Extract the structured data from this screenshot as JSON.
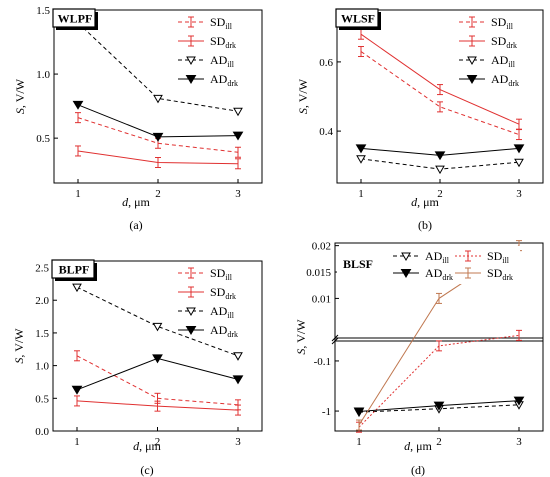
{
  "chart_data": [
    {
      "type": "line",
      "panel": "(a)",
      "title": "WLPF",
      "xlabel": "d",
      "xunit": ", μm",
      "ylabel": "S",
      "yunit": ", V/W",
      "x": [
        1,
        2,
        3
      ],
      "xticks": [
        "1",
        "2",
        "3"
      ],
      "ylim": [
        0.15,
        1.5
      ],
      "yticks": [
        0.5,
        1.0,
        1.5
      ],
      "ytick_labels": [
        "0.5",
        "1.0",
        "1.5"
      ],
      "legend_position": "top-right",
      "series": [
        {
          "name": "SD",
          "sub": "ill",
          "values": [
            0.66,
            0.46,
            0.39
          ],
          "color": "#e03030",
          "dash": "dashed",
          "marker": "bar"
        },
        {
          "name": "SD",
          "sub": "drk",
          "values": [
            0.4,
            0.31,
            0.3
          ],
          "color": "#e03030",
          "dash": "solid",
          "marker": "bar"
        },
        {
          "name": "AD",
          "sub": "ill",
          "values": [
            1.4,
            0.81,
            0.71
          ],
          "color": "#000000",
          "dash": "dashed",
          "marker": "tri-open"
        },
        {
          "name": "AD",
          "sub": "drk",
          "values": [
            0.76,
            0.51,
            0.52
          ],
          "color": "#000000",
          "dash": "solid",
          "marker": "tri-filled"
        }
      ]
    },
    {
      "type": "line",
      "panel": "(b)",
      "title": "WLSF",
      "xlabel": "d",
      "xunit": ", μm",
      "ylabel": "S",
      "yunit": ", V/W",
      "x": [
        1,
        2,
        3
      ],
      "xticks": [
        "1",
        "2",
        "3"
      ],
      "ylim": [
        0.25,
        0.75
      ],
      "yticks": [
        0.4,
        0.6
      ],
      "ytick_labels": [
        "0.4",
        "0.6"
      ],
      "legend_position": "top-right",
      "series": [
        {
          "name": "SD",
          "sub": "ill",
          "values": [
            0.63,
            0.47,
            0.39
          ],
          "color": "#e03030",
          "dash": "dashed",
          "marker": "bar"
        },
        {
          "name": "SD",
          "sub": "drk",
          "values": [
            0.68,
            0.52,
            0.42
          ],
          "color": "#e03030",
          "dash": "solid",
          "marker": "bar"
        },
        {
          "name": "AD",
          "sub": "ill",
          "values": [
            0.32,
            0.29,
            0.31
          ],
          "color": "#000000",
          "dash": "dashed",
          "marker": "tri-open"
        },
        {
          "name": "AD",
          "sub": "drk",
          "values": [
            0.35,
            0.33,
            0.35
          ],
          "color": "#000000",
          "dash": "solid",
          "marker": "tri-filled"
        }
      ]
    },
    {
      "type": "line",
      "panel": "(c)",
      "title": "BLPF",
      "xlabel": "d",
      "xunit": ", μm",
      "ylabel": "S",
      "yunit": ", V/W",
      "x": [
        1,
        2,
        3
      ],
      "xticks": [
        "1",
        "2",
        "3"
      ],
      "ylim": [
        0.0,
        2.6
      ],
      "yticks": [
        0.0,
        0.5,
        1.0,
        1.5,
        2.0,
        2.5
      ],
      "ytick_labels": [
        "0.0",
        "0.5",
        "1.0",
        "1.5",
        "2.0",
        "2.5"
      ],
      "legend_position": "top-right",
      "series": [
        {
          "name": "SD",
          "sub": "ill",
          "values": [
            1.15,
            0.5,
            0.4
          ],
          "color": "#e03030",
          "dash": "dashed",
          "marker": "bar"
        },
        {
          "name": "SD",
          "sub": "drk",
          "values": [
            0.46,
            0.38,
            0.32
          ],
          "color": "#e03030",
          "dash": "solid",
          "marker": "bar"
        },
        {
          "name": "AD",
          "sub": "ill",
          "values": [
            2.2,
            1.6,
            1.15
          ],
          "color": "#000000",
          "dash": "dashed",
          "marker": "tri-open"
        },
        {
          "name": "AD",
          "sub": "drk",
          "values": [
            0.63,
            1.11,
            0.79
          ],
          "color": "#000000",
          "dash": "solid",
          "marker": "tri-filled"
        }
      ]
    },
    {
      "type": "line",
      "panel": "(d)",
      "title": "BLSF",
      "xlabel": "d",
      "xunit": ", μm",
      "ylabel": "S",
      "yunit": ", V/W",
      "x": [
        1,
        2,
        3
      ],
      "xticks": [
        "1",
        "2",
        "3"
      ],
      "broken_axis": true,
      "yticks": [
        -1,
        -0.1,
        0.01,
        0.015,
        0.02
      ],
      "ytick_labels": [
        "-1",
        "-0.1",
        "0.01",
        "0.015",
        "0.02"
      ],
      "legend_position": "top-left",
      "series": [
        {
          "name": "AD",
          "sub": "ill",
          "values": [
            -1.05,
            -0.9,
            -0.75
          ],
          "color": "#000000",
          "dash": "dashed",
          "marker": "tri-open"
        },
        {
          "name": "SD",
          "sub": "ill",
          "values": [
            -2.1,
            -0.05,
            0.003
          ],
          "color": "#e03030",
          "dash": "dotted",
          "marker": "bar"
        },
        {
          "name": "AD",
          "sub": "drk",
          "values": [
            -1.02,
            -0.78,
            -0.62
          ],
          "color": "#000000",
          "dash": "solid",
          "marker": "tri-filled"
        },
        {
          "name": "SD",
          "sub": "drk",
          "values": [
            -1.9,
            0.01,
            0.02
          ],
          "color": "#c07850",
          "dash": "solid",
          "marker": "bar"
        }
      ]
    }
  ]
}
